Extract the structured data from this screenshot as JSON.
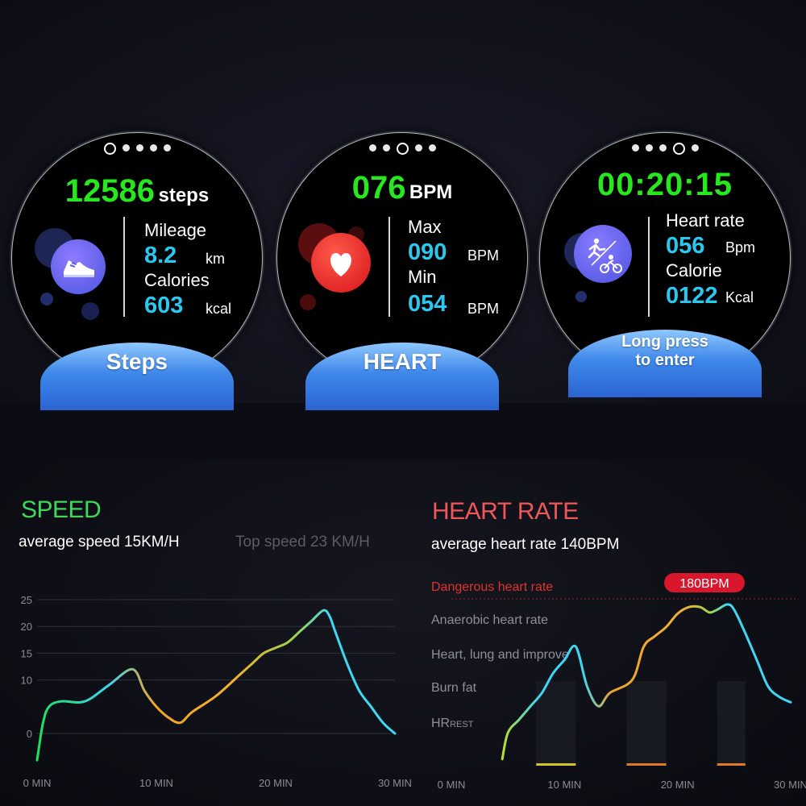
{
  "steps_screen": {
    "count": "12586",
    "count_unit": "steps",
    "mileage_label": "Mileage",
    "mileage_value": "8.2",
    "mileage_unit": "km",
    "calories_label": "Calories",
    "calories_value": "603",
    "calories_unit": "kcal",
    "banner": "Steps",
    "icon": "sneaker-icon"
  },
  "heart_screen": {
    "bpm": "076",
    "bpm_unit": "BPM",
    "max_label": "Max",
    "max_value": "090",
    "max_unit": "BPM",
    "min_label": "Min",
    "min_value": "054",
    "min_unit": "BPM",
    "banner": "HEART",
    "icon": "heart-icon"
  },
  "sport_screen": {
    "timer": "00:20:15",
    "hr_label": "Heart rate",
    "hr_value": "056",
    "hr_unit": "Bpm",
    "cal_label": "Calorie",
    "cal_value": "0122",
    "cal_unit": "Kcal",
    "banner_line1": "Long press",
    "banner_line2": "to enter",
    "icon": "run-bike-icon"
  },
  "speed_panel": {
    "title": "SPEED",
    "avg": "average speed 15KM/H",
    "top": "Top speed  23 KM/H",
    "title_color": "#3ed85a"
  },
  "heart_panel": {
    "title": "HEART RATE",
    "avg": "average heart rate 140BPM",
    "peak_badge": "180BPM",
    "title_color": "#f0575a",
    "zones": {
      "danger": "Dangerous heart rate",
      "anaerobic": "Anaerobic heart rate",
      "improve": "Heart, lung and improve",
      "burn": "Burn fat",
      "rest_main": "HR",
      "rest_sub": "REST"
    }
  },
  "chart_data": [
    {
      "type": "line",
      "xlabel": "",
      "ylabel": "",
      "x_ticks": [
        "0 MIN",
        "10 MIN",
        "20 MIN",
        "30 MIN"
      ],
      "y_ticks": [
        "25",
        "20",
        "15",
        "10",
        "0"
      ],
      "ylim": [
        0,
        25
      ],
      "xlim": [
        0,
        30
      ],
      "grid": true,
      "series": [
        {
          "x": [
            0,
            0.5,
            1,
            2,
            4,
            6,
            8,
            9,
            10,
            11,
            12,
            13,
            15,
            17,
            18,
            19,
            20,
            21,
            22,
            23,
            24,
            24.5,
            25,
            26,
            27,
            28,
            29,
            30
          ],
          "values": [
            -5,
            2,
            5,
            6,
            6,
            9,
            12,
            8,
            5,
            3,
            2,
            4,
            7,
            11,
            13,
            15,
            16,
            17,
            19,
            21,
            23,
            22,
            19,
            13,
            8,
            5,
            2,
            0
          ]
        }
      ]
    },
    {
      "type": "line",
      "xlabel": "",
      "ylabel": "",
      "x_ticks": [
        "0 MIN",
        "10 MIN",
        "20 MIN",
        "30 MIN"
      ],
      "ylim": [
        60,
        185
      ],
      "xlim": [
        0,
        30
      ],
      "grid": true,
      "series": [
        {
          "x": [
            4.5,
            5,
            6,
            7,
            8,
            9,
            10,
            11,
            12,
            13,
            14,
            16,
            17,
            18,
            19,
            20,
            21,
            22,
            22.8,
            23.5,
            24.4,
            25,
            26,
            27,
            28,
            29,
            30
          ],
          "values": [
            65,
            85,
            95,
            105,
            115,
            130,
            140,
            150,
            120,
            105,
            115,
            125,
            150,
            158,
            165,
            175,
            180,
            180,
            176,
            178,
            182,
            178,
            160,
            140,
            120,
            112,
            108
          ]
        }
      ]
    }
  ]
}
